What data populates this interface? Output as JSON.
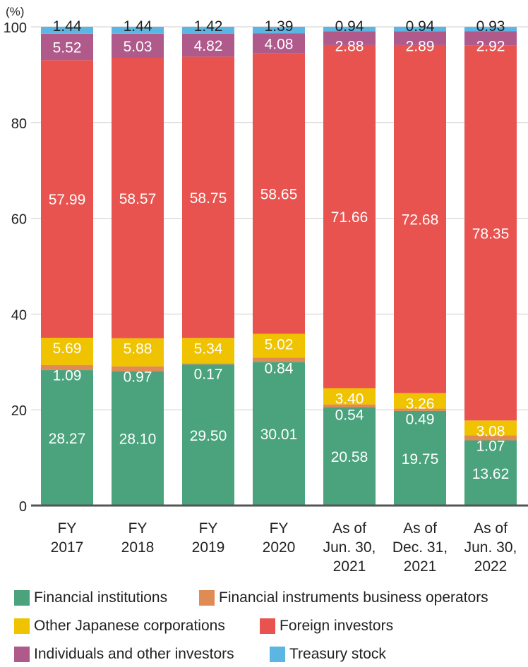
{
  "chart_data": {
    "type": "stacked-bar",
    "unit_label": "(%)",
    "ylim": [
      0,
      100
    ],
    "yticks": [
      0,
      20,
      40,
      60,
      80,
      100
    ],
    "grid": true,
    "categories": [
      [
        "FY",
        "2017"
      ],
      [
        "FY",
        "2018"
      ],
      [
        "FY",
        "2019"
      ],
      [
        "FY",
        "2020"
      ],
      [
        "As of",
        "Jun. 30,",
        "2021"
      ],
      [
        "As of",
        "Dec. 31,",
        "2021"
      ],
      [
        "As of",
        "Jun. 30,",
        "2022"
      ]
    ],
    "series": [
      {
        "name": "Financial institutions",
        "color": "#4aa37d",
        "values": [
          28.27,
          28.1,
          29.5,
          30.01,
          20.58,
          19.75,
          13.62
        ],
        "labels": [
          "28.27",
          "28.10",
          "29.50",
          "30.01",
          "20.58",
          "19.75",
          "13.62"
        ]
      },
      {
        "name": "Financial instruments business operators",
        "color": "#e08a55",
        "values": [
          1.09,
          0.97,
          0.17,
          0.84,
          0.54,
          0.49,
          1.07
        ],
        "labels": [
          "1.09",
          "0.97",
          "0.17",
          "0.84",
          "0.54",
          "0.49",
          "1.07"
        ]
      },
      {
        "name": "Other Japanese corporations",
        "color": "#f0c300",
        "values": [
          5.69,
          5.88,
          5.34,
          5.02,
          3.4,
          3.26,
          3.08
        ],
        "labels": [
          "5.69",
          "5.88",
          "5.34",
          "5.02",
          "3.40",
          "3.26",
          "3.08"
        ]
      },
      {
        "name": "Foreign investors",
        "color": "#e8534f",
        "values": [
          57.99,
          58.57,
          58.75,
          58.65,
          71.66,
          72.68,
          78.35
        ],
        "labels": [
          "57.99",
          "58.57",
          "58.75",
          "58.65",
          "71.66",
          "72.68",
          "78.35"
        ]
      },
      {
        "name": "Individuals and other investors",
        "color": "#b05a8c",
        "values": [
          5.52,
          5.03,
          4.82,
          4.08,
          2.88,
          2.89,
          2.92
        ],
        "labels": [
          "5.52",
          "5.03",
          "4.82",
          "4.08",
          "2.88",
          "2.89",
          "2.92"
        ]
      },
      {
        "name": "Treasury stock",
        "color": "#5bb6e3",
        "values": [
          1.44,
          1.44,
          1.42,
          1.39,
          0.94,
          0.94,
          0.93
        ],
        "labels": [
          "1.44",
          "1.44",
          "1.42",
          "1.39",
          "0.94",
          "0.94",
          "0.93"
        ]
      }
    ],
    "legend_position": "bottom"
  }
}
